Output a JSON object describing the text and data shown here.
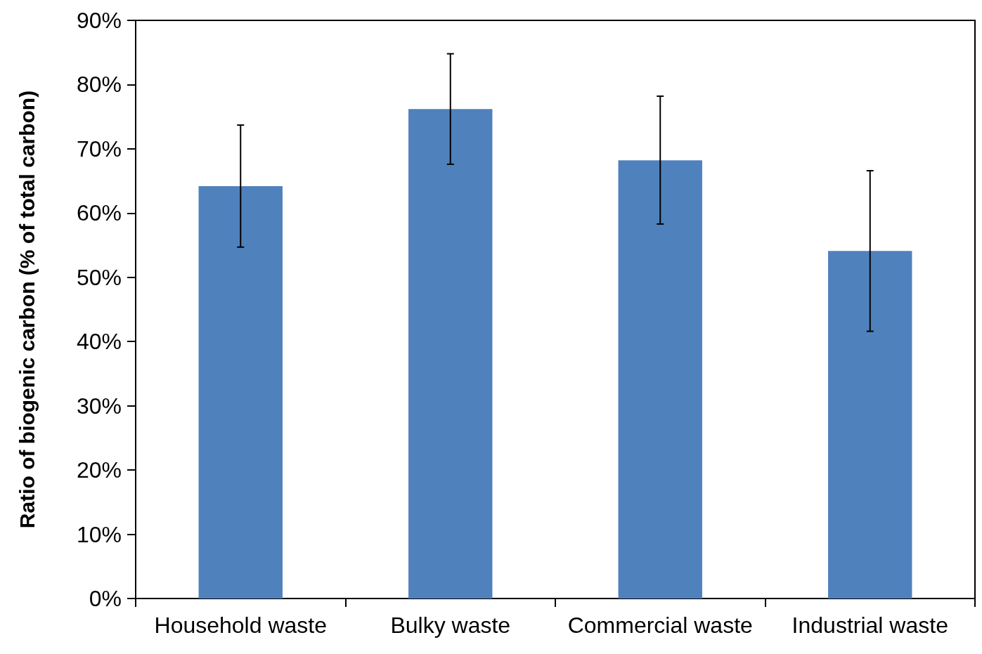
{
  "chart_data": {
    "type": "bar",
    "ylabel": "Ratio of biogenic carbon (% of total carbon)",
    "categories": [
      "Household waste",
      "Bulky waste",
      "Commercial waste",
      "Industrial waste"
    ],
    "values": [
      64.2,
      76.2,
      68.2,
      54.1
    ],
    "color": "#4f81bd",
    "errors": [
      [
        54.7,
        73.7
      ],
      [
        67.6,
        84.8
      ],
      [
        58.3,
        78.2
      ],
      [
        41.6,
        66.6
      ]
    ],
    "ylim": [
      0,
      90
    ],
    "yticks": [
      {
        "value": 0,
        "label": "0%"
      },
      {
        "value": 10,
        "label": "10%"
      },
      {
        "value": 20,
        "label": "20%"
      },
      {
        "value": 30,
        "label": "30%"
      },
      {
        "value": 40,
        "label": "40%"
      },
      {
        "value": 50,
        "label": "50%"
      },
      {
        "value": 60,
        "label": "60%"
      },
      {
        "value": 70,
        "label": "70%"
      },
      {
        "value": 80,
        "label": "80%"
      },
      {
        "value": 90,
        "label": "90%"
      }
    ],
    "grid": false
  }
}
